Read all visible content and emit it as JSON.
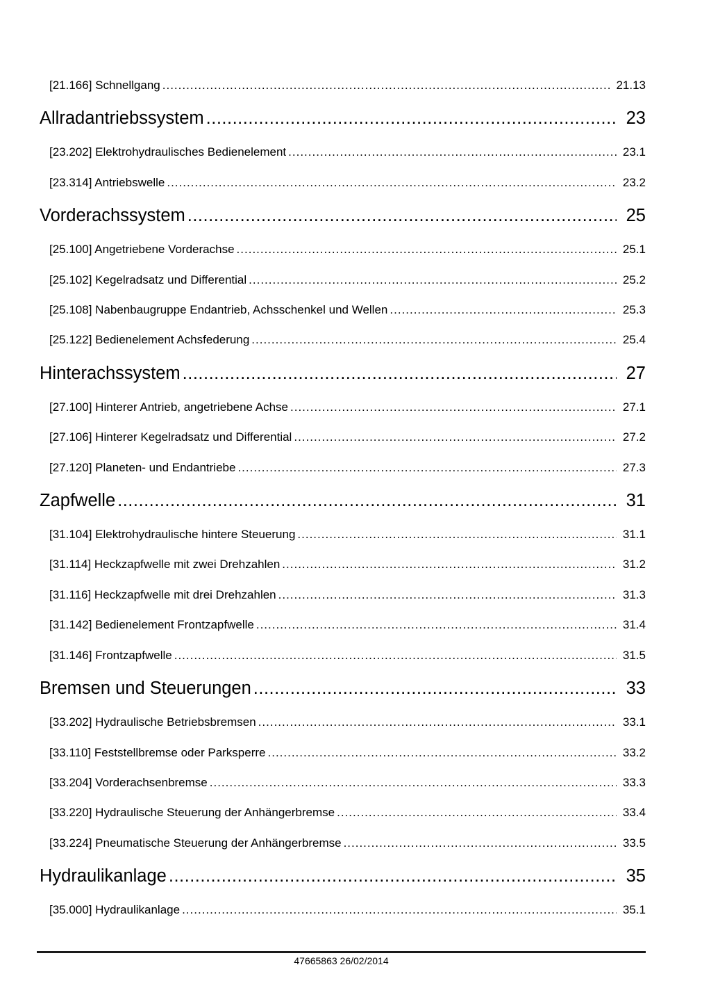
{
  "toc": {
    "items": [
      {
        "type": "entry",
        "label": "[21.166] Schnellgang",
        "page": "21.13"
      },
      {
        "type": "heading",
        "label": "Allradantriebssystem",
        "page": "23"
      },
      {
        "type": "entry",
        "label": "[23.202] Elektrohydraulisches Bedienelement",
        "page": "23.1"
      },
      {
        "type": "entry",
        "label": "[23.314] Antriebswelle",
        "page": "23.2"
      },
      {
        "type": "heading",
        "label": "Vorderachssystem",
        "page": "25"
      },
      {
        "type": "entry",
        "label": "[25.100] Angetriebene Vorderachse",
        "page": "25.1"
      },
      {
        "type": "entry",
        "label": "[25.102] Kegelradsatz und Differential",
        "page": "25.2"
      },
      {
        "type": "entry",
        "label": "[25.108] Nabenbaugruppe Endantrieb, Achsschenkel und Wellen",
        "page": "25.3"
      },
      {
        "type": "entry",
        "label": "[25.122] Bedienelement Achsfederung",
        "page": "25.4"
      },
      {
        "type": "heading",
        "label": "Hinterachssystem",
        "page": "27"
      },
      {
        "type": "entry",
        "label": "[27.100] Hinterer Antrieb, angetriebene Achse",
        "page": "27.1"
      },
      {
        "type": "entry",
        "label": "[27.106] Hinterer Kegelradsatz und Differential",
        "page": "27.2"
      },
      {
        "type": "entry",
        "label": "[27.120] Planeten- und Endantriebe",
        "page": "27.3"
      },
      {
        "type": "heading",
        "label": "Zapfwelle",
        "page": "31"
      },
      {
        "type": "entry",
        "label": "[31.104] Elektrohydraulische hintere Steuerung",
        "page": "31.1"
      },
      {
        "type": "entry",
        "label": "[31.114] Heckzapfwelle mit zwei Drehzahlen",
        "page": "31.2"
      },
      {
        "type": "entry",
        "label": "[31.116] Heckzapfwelle mit drei Drehzahlen",
        "page": "31.3"
      },
      {
        "type": "entry",
        "label": "[31.142] Bedienelement Frontzapfwelle",
        "page": "31.4"
      },
      {
        "type": "entry",
        "label": "[31.146] Frontzapfwelle",
        "page": "31.5"
      },
      {
        "type": "heading",
        "label": "Bremsen und Steuerungen",
        "page": "33"
      },
      {
        "type": "entry",
        "label": "[33.202] Hydraulische Betriebsbremsen",
        "page": "33.1"
      },
      {
        "type": "entry",
        "label": "[33.110] Feststellbremse oder Parksperre",
        "page": "33.2"
      },
      {
        "type": "entry",
        "label": "[33.204] Vorderachsenbremse",
        "page": "33.3"
      },
      {
        "type": "entry",
        "label": "[33.220] Hydraulische Steuerung der Anhängerbremse",
        "page": "33.4"
      },
      {
        "type": "entry",
        "label": "[33.224] Pneumatische Steuerung der Anhängerbremse",
        "page": "33.5"
      },
      {
        "type": "heading",
        "label": "Hydraulikanlage",
        "page": "35"
      },
      {
        "type": "entry",
        "label": "[35.000] Hydraulikanlage",
        "page": "35.1"
      }
    ]
  },
  "footer": {
    "text": "47665863 26/02/2014"
  }
}
